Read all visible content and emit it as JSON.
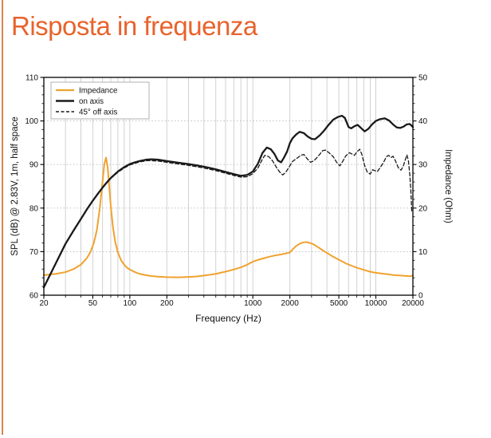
{
  "title": "Risposta in frequenza",
  "colors": {
    "title": "#E8632C",
    "accent_border": "#D7854F",
    "impedance_line": "#F0A22E",
    "black_line": "#1a1a1a",
    "grid_vertical": "#cccccc",
    "grid_horizontal": "#b8b8b8",
    "spine": "#000000",
    "legend_border": "#b0b0b0"
  },
  "chart_data": {
    "type": "line",
    "x_axis": {
      "label": "Frequency (Hz)",
      "scale": "log",
      "min": 20,
      "max": 20000,
      "labeled_ticks": [
        20,
        50,
        100,
        200,
        1000,
        2000,
        5000,
        10000,
        20000
      ],
      "tick_labels": [
        "20",
        "50",
        "100",
        "200",
        "1000",
        "2000",
        "5000",
        "10000",
        "20000"
      ]
    },
    "y_left": {
      "label": "SPL (dB) @ 2.83V, 1m, half space",
      "min": 60,
      "max": 110,
      "major_step": 10,
      "minor_step": 2,
      "tick_labels": [
        "60",
        "70",
        "80",
        "90",
        "100",
        "110"
      ]
    },
    "y_right": {
      "label": "Impedance (Ohm)",
      "min": 0,
      "max": 50,
      "major_step": 10,
      "minor_step": 2,
      "tick_labels": [
        "0",
        "10",
        "20",
        "30",
        "40",
        "50"
      ]
    },
    "grid": {
      "vertical": "solid-minor-log",
      "horizontal": "dashed-at-majors"
    },
    "legend": {
      "position": "top-left",
      "entries": [
        {
          "label": "Impedance",
          "style": "solid",
          "color": "#F0A22E",
          "width": 2.2
        },
        {
          "label": "on axis",
          "style": "solid",
          "color": "#1a1a1a",
          "width": 2.6
        },
        {
          "label": "45° off axis",
          "style": "dashed",
          "color": "#1a1a1a",
          "width": 1.4
        }
      ]
    },
    "series": [
      {
        "name": "Impedance",
        "axis": "right",
        "unit": "Ohm",
        "color": "#F0A22E",
        "width": 2,
        "dash": null,
        "points": [
          [
            20,
            4.6
          ],
          [
            25,
            4.9
          ],
          [
            30,
            5.3
          ],
          [
            35,
            6.0
          ],
          [
            40,
            7.0
          ],
          [
            45,
            8.6
          ],
          [
            48,
            10.0
          ],
          [
            51,
            12.0
          ],
          [
            54,
            15.0
          ],
          [
            57,
            20.0
          ],
          [
            60,
            26.0
          ],
          [
            62,
            30.0
          ],
          [
            64,
            31.6
          ],
          [
            66,
            29.5
          ],
          [
            68,
            25.0
          ],
          [
            70,
            20.5
          ],
          [
            73,
            15.5
          ],
          [
            76,
            12.3
          ],
          [
            80,
            9.8
          ],
          [
            85,
            8.0
          ],
          [
            90,
            7.0
          ],
          [
            95,
            6.3
          ],
          [
            100,
            5.9
          ],
          [
            110,
            5.3
          ],
          [
            120,
            4.9
          ],
          [
            135,
            4.6
          ],
          [
            150,
            4.4
          ],
          [
            170,
            4.25
          ],
          [
            200,
            4.15
          ],
          [
            250,
            4.1
          ],
          [
            300,
            4.2
          ],
          [
            350,
            4.3
          ],
          [
            400,
            4.5
          ],
          [
            450,
            4.7
          ],
          [
            500,
            4.9
          ],
          [
            600,
            5.4
          ],
          [
            700,
            5.9
          ],
          [
            800,
            6.4
          ],
          [
            900,
            7.0
          ],
          [
            1000,
            7.7
          ],
          [
            1100,
            8.1
          ],
          [
            1200,
            8.4
          ],
          [
            1350,
            8.8
          ],
          [
            1500,
            9.1
          ],
          [
            1650,
            9.3
          ],
          [
            1800,
            9.5
          ],
          [
            2000,
            9.8
          ],
          [
            2100,
            10.5
          ],
          [
            2250,
            11.3
          ],
          [
            2400,
            11.8
          ],
          [
            2550,
            12.1
          ],
          [
            2700,
            12.2
          ],
          [
            2900,
            12.0
          ],
          [
            3100,
            11.7
          ],
          [
            3400,
            11.0
          ],
          [
            3700,
            10.3
          ],
          [
            4000,
            9.7
          ],
          [
            4400,
            9.0
          ],
          [
            4800,
            8.4
          ],
          [
            5200,
            7.9
          ],
          [
            5700,
            7.3
          ],
          [
            6300,
            6.8
          ],
          [
            7000,
            6.3
          ],
          [
            7800,
            5.9
          ],
          [
            8700,
            5.5
          ],
          [
            9700,
            5.2
          ],
          [
            11000,
            5.0
          ],
          [
            12500,
            4.8
          ],
          [
            14000,
            4.6
          ],
          [
            16000,
            4.5
          ],
          [
            18000,
            4.4
          ],
          [
            19000,
            4.35
          ],
          [
            20000,
            4.5
          ]
        ]
      },
      {
        "name": "on axis",
        "axis": "left",
        "unit": "dB",
        "color": "#1a1a1a",
        "width": 2.3,
        "dash": null,
        "points": [
          [
            20,
            61.8
          ],
          [
            25,
            67.3
          ],
          [
            30,
            71.8
          ],
          [
            35,
            74.9
          ],
          [
            40,
            77.5
          ],
          [
            45,
            79.8
          ],
          [
            50,
            81.7
          ],
          [
            55,
            83.3
          ],
          [
            60,
            84.7
          ],
          [
            65,
            85.9
          ],
          [
            70,
            86.9
          ],
          [
            80,
            88.4
          ],
          [
            90,
            89.4
          ],
          [
            100,
            90.1
          ],
          [
            110,
            90.5
          ],
          [
            120,
            90.8
          ],
          [
            135,
            91.1
          ],
          [
            150,
            91.2
          ],
          [
            170,
            91.1
          ],
          [
            200,
            90.8
          ],
          [
            250,
            90.4
          ],
          [
            300,
            90.1
          ],
          [
            350,
            89.8
          ],
          [
            400,
            89.5
          ],
          [
            450,
            89.2
          ],
          [
            500,
            88.9
          ],
          [
            600,
            88.3
          ],
          [
            700,
            87.8
          ],
          [
            800,
            87.4
          ],
          [
            900,
            87.6
          ],
          [
            1000,
            88.4
          ],
          [
            1100,
            90.2
          ],
          [
            1200,
            92.7
          ],
          [
            1300,
            93.9
          ],
          [
            1400,
            93.5
          ],
          [
            1500,
            92.4
          ],
          [
            1600,
            90.9
          ],
          [
            1700,
            90.5
          ],
          [
            1800,
            91.7
          ],
          [
            1900,
            93.0
          ],
          [
            2000,
            94.9
          ],
          [
            2100,
            96.0
          ],
          [
            2250,
            96.9
          ],
          [
            2400,
            97.5
          ],
          [
            2600,
            97.2
          ],
          [
            2800,
            96.4
          ],
          [
            3000,
            95.9
          ],
          [
            3200,
            95.8
          ],
          [
            3500,
            96.7
          ],
          [
            3800,
            97.8
          ],
          [
            4100,
            99.0
          ],
          [
            4500,
            100.3
          ],
          [
            4900,
            100.9
          ],
          [
            5300,
            101.2
          ],
          [
            5600,
            100.7
          ],
          [
            6000,
            98.6
          ],
          [
            6300,
            98.3
          ],
          [
            6700,
            98.8
          ],
          [
            7100,
            99.1
          ],
          [
            7500,
            98.5
          ],
          [
            8100,
            97.6
          ],
          [
            8700,
            98.2
          ],
          [
            9300,
            99.2
          ],
          [
            10000,
            100.0
          ],
          [
            10800,
            100.4
          ],
          [
            11800,
            100.6
          ],
          [
            12800,
            100.1
          ],
          [
            13800,
            99.2
          ],
          [
            14800,
            98.5
          ],
          [
            15800,
            98.4
          ],
          [
            16800,
            98.7
          ],
          [
            17800,
            99.2
          ],
          [
            18800,
            99.3
          ],
          [
            19400,
            99.0
          ],
          [
            20000,
            98.6
          ]
        ]
      },
      {
        "name": "45° off axis",
        "axis": "left",
        "unit": "dB",
        "color": "#1a1a1a",
        "width": 1.3,
        "dash": "4.5 2.8",
        "points": [
          [
            20,
            61.8
          ],
          [
            25,
            67.2
          ],
          [
            30,
            71.7
          ],
          [
            35,
            74.8
          ],
          [
            40,
            77.4
          ],
          [
            45,
            79.7
          ],
          [
            50,
            81.6
          ],
          [
            55,
            83.2
          ],
          [
            60,
            84.6
          ],
          [
            70,
            86.8
          ],
          [
            80,
            88.2
          ],
          [
            90,
            89.2
          ],
          [
            100,
            89.9
          ],
          [
            120,
            90.6
          ],
          [
            140,
            90.9
          ],
          [
            170,
            90.8
          ],
          [
            200,
            90.5
          ],
          [
            250,
            90.1
          ],
          [
            300,
            89.8
          ],
          [
            400,
            89.2
          ],
          [
            500,
            88.6
          ],
          [
            600,
            88.0
          ],
          [
            700,
            87.5
          ],
          [
            800,
            87.1
          ],
          [
            900,
            87.2
          ],
          [
            1000,
            87.9
          ],
          [
            1100,
            89.2
          ],
          [
            1200,
            91.3
          ],
          [
            1250,
            92.1
          ],
          [
            1350,
            91.8
          ],
          [
            1450,
            90.8
          ],
          [
            1550,
            89.4
          ],
          [
            1650,
            88.3
          ],
          [
            1750,
            87.6
          ],
          [
            1850,
            88.2
          ],
          [
            1950,
            89.2
          ],
          [
            2100,
            90.7
          ],
          [
            2300,
            91.5
          ],
          [
            2450,
            92.1
          ],
          [
            2600,
            92.3
          ],
          [
            2750,
            91.4
          ],
          [
            2950,
            90.5
          ],
          [
            3150,
            90.9
          ],
          [
            3400,
            91.9
          ],
          [
            3700,
            93.2
          ],
          [
            3900,
            93.3
          ],
          [
            4200,
            92.6
          ],
          [
            4500,
            91.8
          ],
          [
            4800,
            90.5
          ],
          [
            5100,
            89.7
          ],
          [
            5400,
            90.8
          ],
          [
            5700,
            92.0
          ],
          [
            6100,
            92.7
          ],
          [
            6400,
            92.4
          ],
          [
            6700,
            92.1
          ],
          [
            7000,
            92.9
          ],
          [
            7400,
            93.5
          ],
          [
            7700,
            92.3
          ],
          [
            8100,
            89.8
          ],
          [
            8500,
            88.3
          ],
          [
            9000,
            87.8
          ],
          [
            9400,
            88.8
          ],
          [
            9800,
            88.6
          ],
          [
            10300,
            88.4
          ],
          [
            10900,
            89.4
          ],
          [
            11500,
            90.4
          ],
          [
            12200,
            91.8
          ],
          [
            12700,
            92.1
          ],
          [
            13300,
            91.6
          ],
          [
            13800,
            91.9
          ],
          [
            14400,
            90.9
          ],
          [
            15200,
            89.3
          ],
          [
            16000,
            88.7
          ],
          [
            16700,
            89.6
          ],
          [
            17300,
            91.0
          ],
          [
            17900,
            92.2
          ],
          [
            18400,
            90.8
          ],
          [
            18900,
            87.5
          ],
          [
            19300,
            83.5
          ],
          [
            19600,
            79.0
          ]
        ]
      }
    ]
  }
}
